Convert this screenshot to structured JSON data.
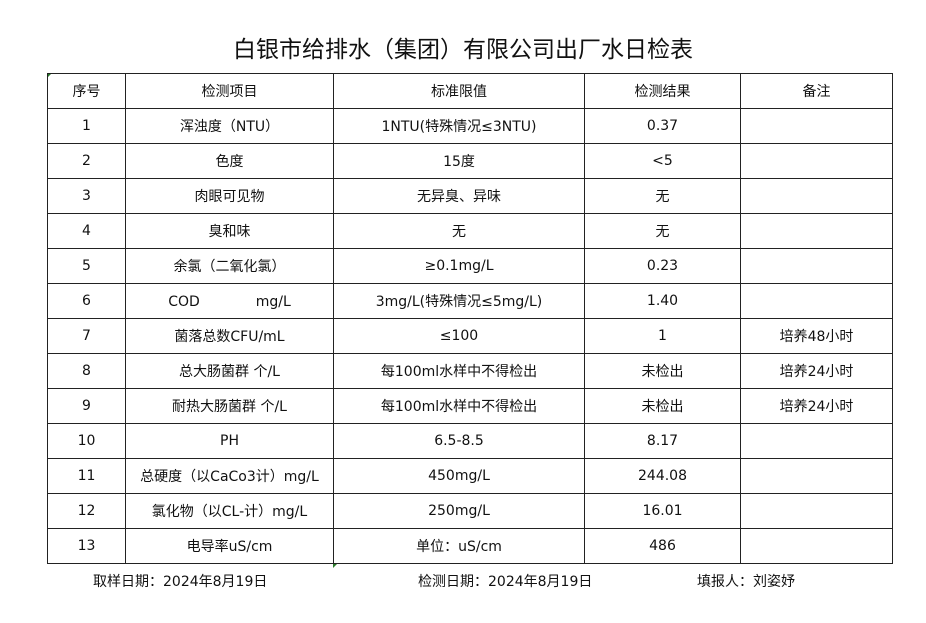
{
  "title": "白银市给排水（集团）有限公司出厂水日检表",
  "headers": [
    "序号",
    "检测项目",
    "标准限值",
    "检测结果",
    "备注"
  ],
  "rows": [
    [
      "1",
      "浑浊度（NTU）",
      "1NTU(特殊情况≤3NTU)",
      "0.37",
      ""
    ],
    [
      "2",
      "色度",
      "15度",
      "<5",
      ""
    ],
    [
      "3",
      "肉眼可见物",
      "无异臭、异味",
      "无",
      ""
    ],
    [
      "4",
      "臭和味",
      "无",
      "无",
      ""
    ],
    [
      "5",
      "余氯（二氧化氯）",
      "≥0.1mg/L",
      "0.23",
      ""
    ],
    [
      "6",
      "COD　　　　mg/L",
      "3mg/L(特殊情况≤5mg/L)",
      "1.40",
      ""
    ],
    [
      "7",
      "菌落总数CFU/mL",
      "≤100",
      "1",
      "培养48小时"
    ],
    [
      "8",
      "总大肠菌群 个/L",
      "每100ml水样中不得检出",
      "未检出",
      "培养24小时"
    ],
    [
      "9",
      "耐热大肠菌群 个/L",
      "每100ml水样中不得检出",
      "未检出",
      "培养24小时"
    ],
    [
      "10",
      "PH",
      "6.5-8.5",
      "8.17",
      ""
    ],
    [
      "11",
      "总硬度（以CaCo3计）mg/L",
      "450mg/L",
      "244.08",
      ""
    ],
    [
      "12",
      "氯化物（以CL-计）mg/L",
      "250mg/L",
      "16.01",
      ""
    ],
    [
      "13",
      "电导率uS/cm",
      "单位：uS/cm",
      "486",
      ""
    ]
  ],
  "footer": {
    "sampling_date": "取样日期：2024年8月19日",
    "test_date": "检测日期：2024年8月19日",
    "reporter": "填报人：刘姿妤"
  }
}
